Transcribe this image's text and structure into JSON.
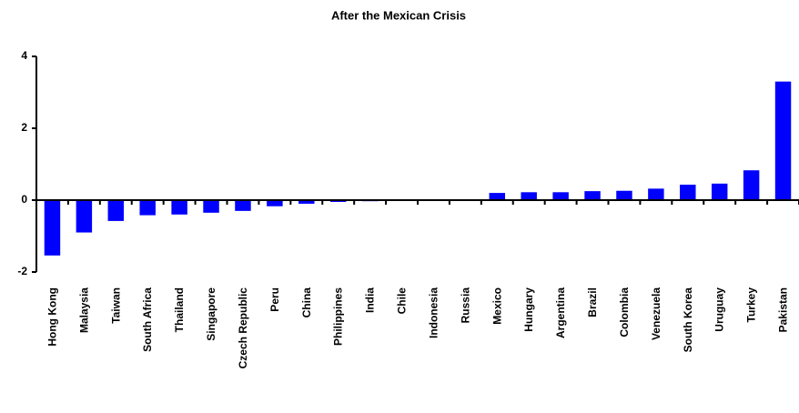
{
  "chart_data": {
    "type": "bar",
    "title": "After the Mexican Crisis",
    "categories": [
      "Hong Kong",
      "Malaysia",
      "Taiwan",
      "South Africa",
      "Thailand",
      "Singapore",
      "Czech Republic",
      "Peru",
      "China",
      "Philippines",
      "India",
      "Chile",
      "Indonesia",
      "Russia",
      "Mexico",
      "Hungary",
      "Argentina",
      "Brazil",
      "Colombia",
      "Venezuela",
      "South Korea",
      "Uruguay",
      "Turkey",
      "Pakistan"
    ],
    "values": [
      -1.54,
      -0.9,
      -0.58,
      -0.42,
      -0.4,
      -0.35,
      -0.3,
      -0.17,
      -0.1,
      -0.05,
      -0.03,
      0,
      -0.02,
      0.02,
      0.2,
      0.22,
      0.22,
      0.25,
      0.26,
      0.32,
      0.43,
      0.46,
      0.83,
      3.3
    ],
    "color": "#0000ff",
    "ylim": [
      -2,
      4
    ],
    "yticks": [
      -2,
      0,
      2,
      4
    ],
    "grid": false
  }
}
